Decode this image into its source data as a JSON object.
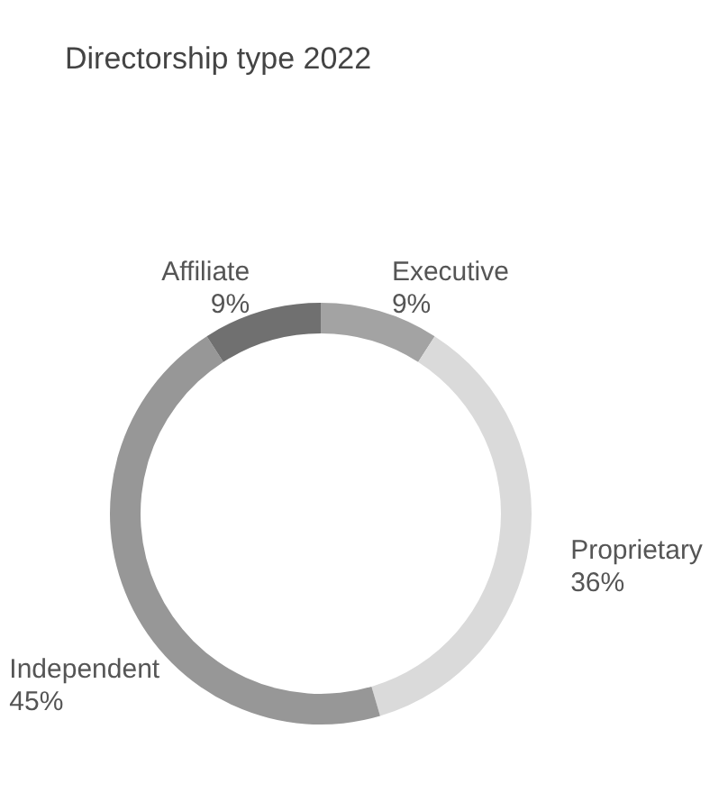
{
  "chart_data": {
    "type": "donut",
    "title": "Directorship type 2022",
    "categories": [
      "Executive",
      "Proprietary",
      "Independent",
      "Affiliate"
    ],
    "values": [
      9,
      36,
      45,
      9
    ],
    "value_labels": [
      "9%",
      "36%",
      "45%",
      "9%"
    ],
    "colors": [
      "#a3a3a3",
      "#dadada",
      "#979797",
      "#707070"
    ],
    "legend": false
  }
}
